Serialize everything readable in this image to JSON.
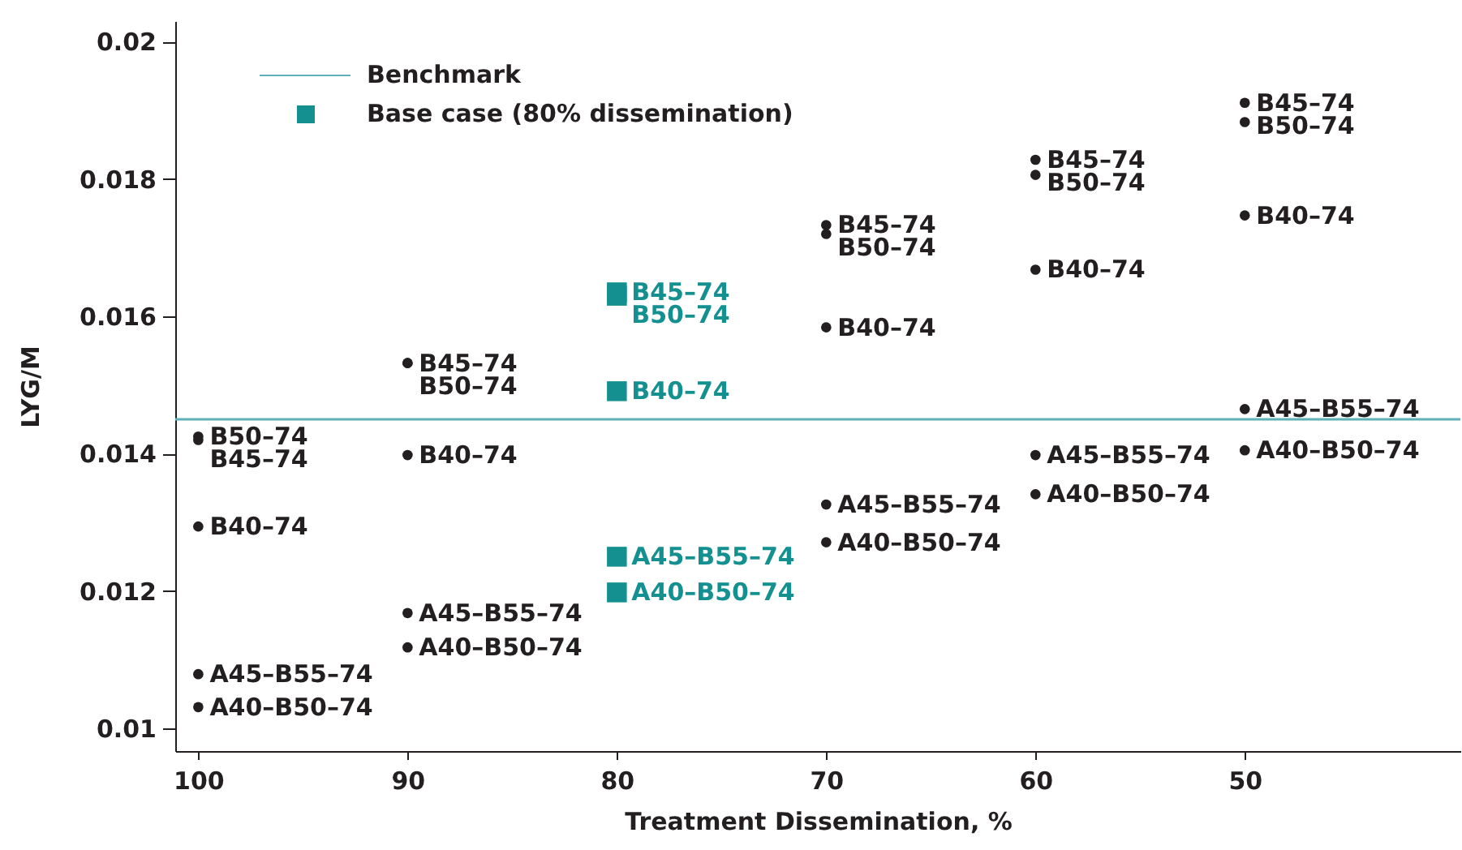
{
  "chart_data": {
    "type": "scatter",
    "xlabel": "Treatment Dissemination, %",
    "ylabel": "LYG/M",
    "xlim": [
      101.1,
      39.7
    ],
    "xticks": [
      100,
      90,
      80,
      70,
      60,
      50
    ],
    "ylim": [
      0.00967,
      0.0203
    ],
    "yticks": [
      0.01,
      0.012,
      0.014,
      0.016,
      0.018,
      0.02
    ],
    "grid": false,
    "legend": "top left",
    "series": [
      {
        "color": "#231f20",
        "marker": "circle",
        "x": [
          100,
          100,
          100,
          100,
          100,
          90,
          90,
          90,
          90,
          90,
          70,
          70,
          70,
          70,
          70,
          60,
          60,
          60,
          60,
          60,
          50,
          50,
          50,
          50,
          50
        ],
        "values": [
          0.01425,
          0.0142,
          0.01294,
          0.01079,
          0.01031,
          0.01532,
          0.01532,
          0.01398,
          0.01168,
          0.01118,
          0.01733,
          0.0172,
          0.01584,
          0.01326,
          0.01271,
          0.01828,
          0.01806,
          0.01668,
          0.01398,
          0.01341,
          0.01911,
          0.01883,
          0.01747,
          0.01465,
          0.01405
        ],
        "value_labels": [
          "B50–74",
          "B45–74",
          "B40–74",
          "A45–B55–74",
          "A40–B50–74",
          "B45–74",
          "B50–74",
          "B40–74",
          "A45–B55–74",
          "A40–B50–74",
          "B45–74",
          "B50–74",
          "B40–74",
          "A45–B55–74",
          "A40–B50–74",
          "B45–74",
          "B50–74",
          "B40–74",
          "A45–B55–74",
          "A40–B50–74",
          "B45–74",
          "B50–74",
          "B40–74",
          "A45–B55–74",
          "A40–B50–74"
        ]
      },
      {
        "name": "Base case (80% dissemination)",
        "color": "#13908f",
        "marker": "square",
        "x": [
          80,
          80,
          80,
          80,
          80
        ],
        "values": [
          0.01635,
          0.0163,
          0.01491,
          0.0125,
          0.01198
        ],
        "value_labels": [
          "B45–74",
          "B50–74",
          "B40–74",
          "A45–B55–74",
          "A40–B50–74"
        ]
      }
    ],
    "ref_lines": [
      {
        "axis": "y",
        "value": 0.0145,
        "label": "Benchmark",
        "color": "#5fb3b8"
      }
    ]
  }
}
